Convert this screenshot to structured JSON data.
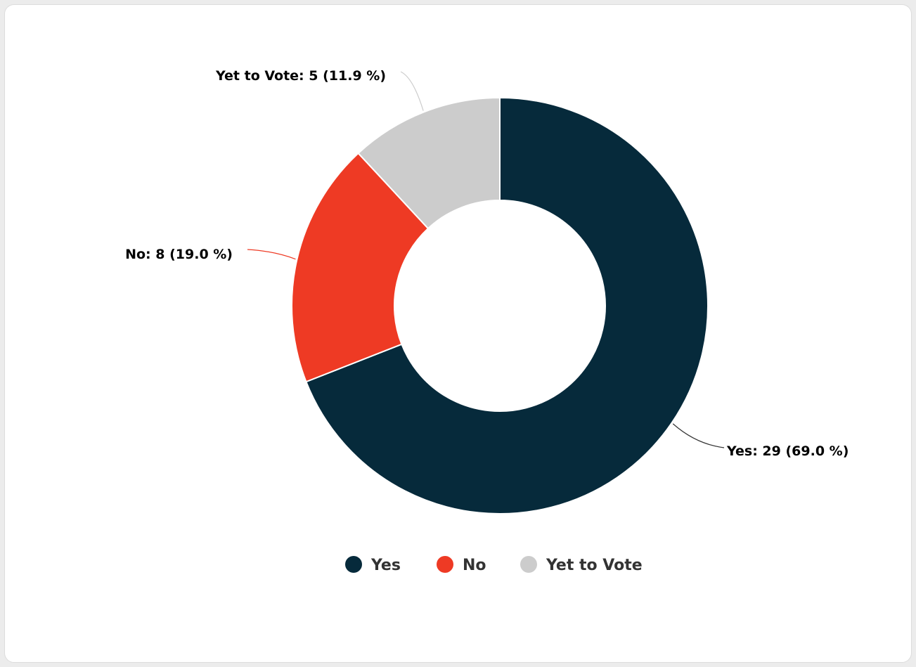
{
  "chart_data": {
    "type": "pie",
    "style": "donut",
    "categories": [
      "Yes",
      "No",
      "Yet to Vote"
    ],
    "values": [
      29,
      8,
      5
    ],
    "percentages": [
      69.0,
      19.0,
      11.9
    ],
    "colors": [
      "#062a3b",
      "#ee3a24",
      "#cccccc"
    ],
    "data_labels": [
      "Yes: 29 (69.0 %)",
      "No: 8 (19.0 %)",
      "Yet to Vote: 5 (11.9 %)"
    ],
    "legend": {
      "position": "bottom",
      "entries": [
        "Yes",
        "No",
        "Yet to Vote"
      ]
    }
  }
}
